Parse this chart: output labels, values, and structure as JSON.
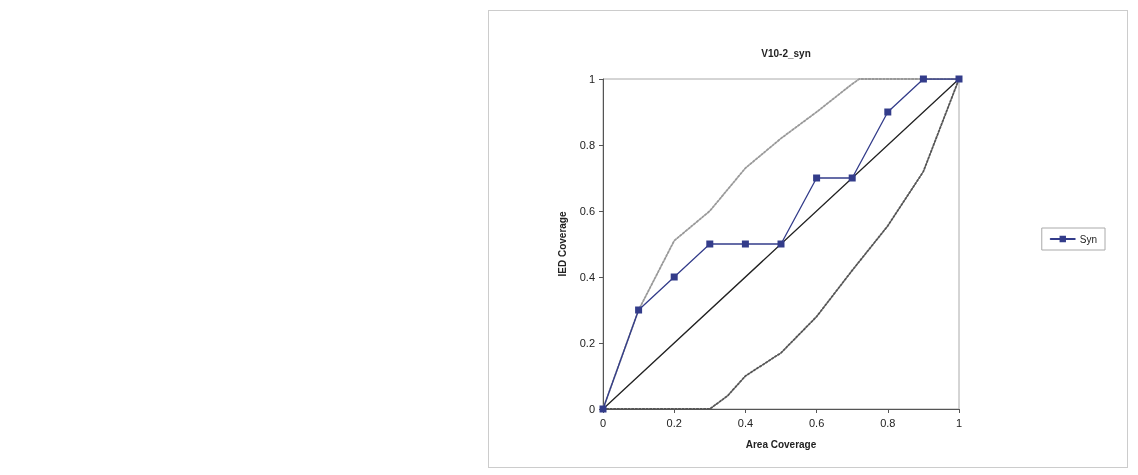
{
  "chart_data": {
    "type": "line",
    "title": "V10-2_syn",
    "xlabel": "Area Coverage",
    "ylabel": "IED Coverage",
    "xlim": [
      0,
      1
    ],
    "xticks": [
      0,
      0.2,
      0.4,
      0.6,
      0.8,
      1
    ],
    "ylim": [
      0,
      1
    ],
    "yticks": [
      0,
      0.2,
      0.4,
      0.6,
      0.8,
      1
    ],
    "grid": false,
    "legend": "right",
    "series": [
      {
        "name": "Syn",
        "color": "#333c8a",
        "marker": "square",
        "line_style": "solid",
        "x": [
          0,
          0.1,
          0.2,
          0.3,
          0.4,
          0.5,
          0.6,
          0.7,
          0.8,
          0.9,
          1
        ],
        "values": [
          0,
          0.3,
          0.4,
          0.5,
          0.5,
          0.5,
          0.7,
          0.7,
          0.9,
          1,
          1
        ]
      },
      {
        "color": "#222222",
        "marker": "none",
        "line_style": "solid",
        "x": [
          0,
          1
        ],
        "values": [
          0,
          1
        ]
      },
      {
        "color": "#999999",
        "marker": "none",
        "line_style": "dotted",
        "x": [
          0,
          0.1,
          0.2,
          0.3,
          0.4,
          0.5,
          0.6,
          0.7,
          0.72,
          1
        ],
        "values": [
          0,
          0.3,
          0.51,
          0.6,
          0.73,
          0.82,
          0.9,
          0.985,
          1,
          1
        ]
      },
      {
        "color": "#555555",
        "marker": "none",
        "line_style": "dotted",
        "x": [
          0,
          0.3,
          0.35,
          0.4,
          0.5,
          0.6,
          0.7,
          0.8,
          0.9,
          1
        ],
        "values": [
          0,
          0,
          0.04,
          0.1,
          0.17,
          0.28,
          0.42,
          0.555,
          0.72,
          1
        ]
      }
    ]
  }
}
